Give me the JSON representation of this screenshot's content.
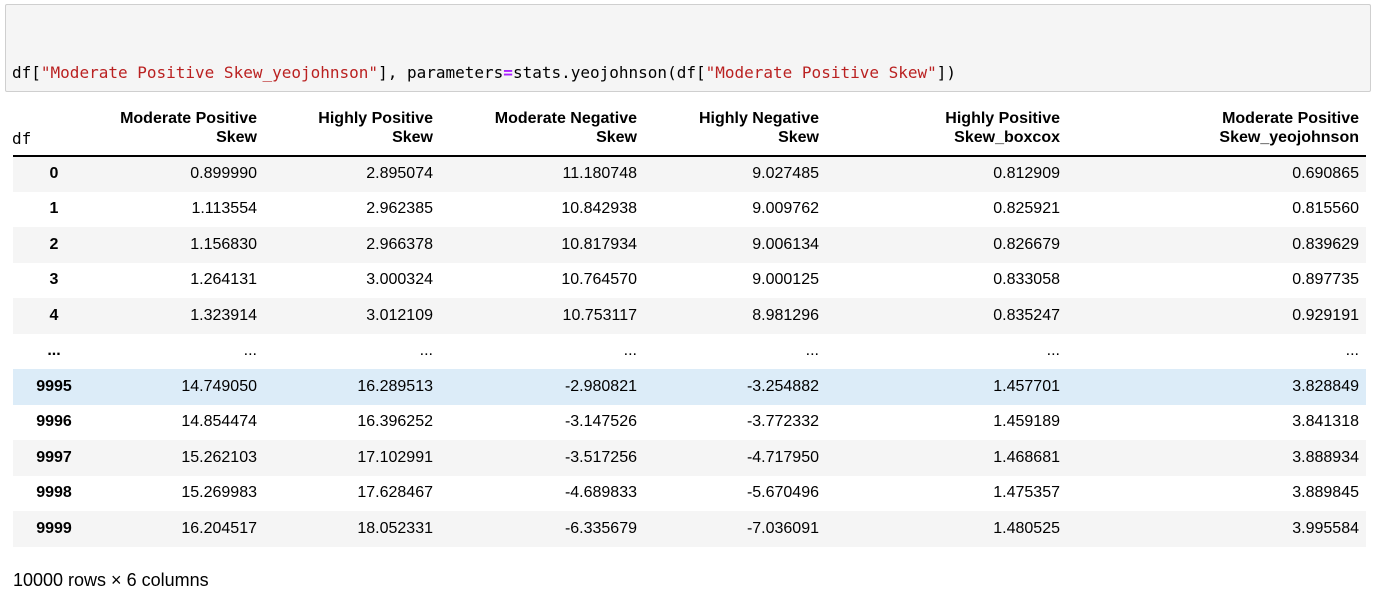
{
  "code": {
    "line1": [
      {
        "t": "plain",
        "v": "df["
      },
      {
        "t": "str",
        "v": "\"Moderate Positive Skew_yeojohnson\""
      },
      {
        "t": "plain",
        "v": "], parameters"
      },
      {
        "t": "op",
        "v": "="
      },
      {
        "t": "plain",
        "v": "stats.yeojohnson(df["
      },
      {
        "t": "str",
        "v": "\"Moderate Positive Skew\""
      },
      {
        "t": "plain",
        "v": "])"
      }
    ],
    "line2": "df"
  },
  "table": {
    "columns": [
      [
        "Moderate Positive",
        "Skew"
      ],
      [
        "Highly Positive",
        "Skew"
      ],
      [
        "Moderate Negative",
        "Skew"
      ],
      [
        "Highly Negative",
        "Skew"
      ],
      [
        "Highly Positive",
        "Skew_boxcox"
      ],
      [
        "Moderate Positive",
        "Skew_yeojohnson"
      ]
    ],
    "rows": [
      {
        "index": "0",
        "values": [
          "0.899990",
          "2.895074",
          "11.180748",
          "9.027485",
          "0.812909",
          "0.690865"
        ]
      },
      {
        "index": "1",
        "values": [
          "1.113554",
          "2.962385",
          "10.842938",
          "9.009762",
          "0.825921",
          "0.815560"
        ]
      },
      {
        "index": "2",
        "values": [
          "1.156830",
          "2.966378",
          "10.817934",
          "9.006134",
          "0.826679",
          "0.839629"
        ]
      },
      {
        "index": "3",
        "values": [
          "1.264131",
          "3.000324",
          "10.764570",
          "9.000125",
          "0.833058",
          "0.897735"
        ]
      },
      {
        "index": "4",
        "values": [
          "1.323914",
          "3.012109",
          "10.753117",
          "8.981296",
          "0.835247",
          "0.929191"
        ]
      },
      {
        "index": "...",
        "values": [
          "...",
          "...",
          "...",
          "...",
          "...",
          "..."
        ]
      },
      {
        "index": "9995",
        "values": [
          "14.749050",
          "16.289513",
          "-2.980821",
          "-3.254882",
          "1.457701",
          "3.828849"
        ],
        "highlighted": true
      },
      {
        "index": "9996",
        "values": [
          "14.854474",
          "16.396252",
          "-3.147526",
          "-3.772332",
          "1.459189",
          "3.841318"
        ]
      },
      {
        "index": "9997",
        "values": [
          "15.262103",
          "17.102991",
          "-3.517256",
          "-4.717950",
          "1.468681",
          "3.888934"
        ]
      },
      {
        "index": "9998",
        "values": [
          "15.269983",
          "17.628467",
          "-4.689833",
          "-5.670496",
          "1.475357",
          "3.889845"
        ]
      },
      {
        "index": "9999",
        "values": [
          "16.204517",
          "18.052331",
          "-6.335679",
          "-7.036091",
          "1.480525",
          "3.995584"
        ]
      }
    ]
  },
  "footer": "10000 rows × 6 columns",
  "colors": {
    "string": "#ba2121",
    "operator": "#aa22ff",
    "row_stripe": "#f5f5f5",
    "row_hover": "#dcecf8"
  }
}
